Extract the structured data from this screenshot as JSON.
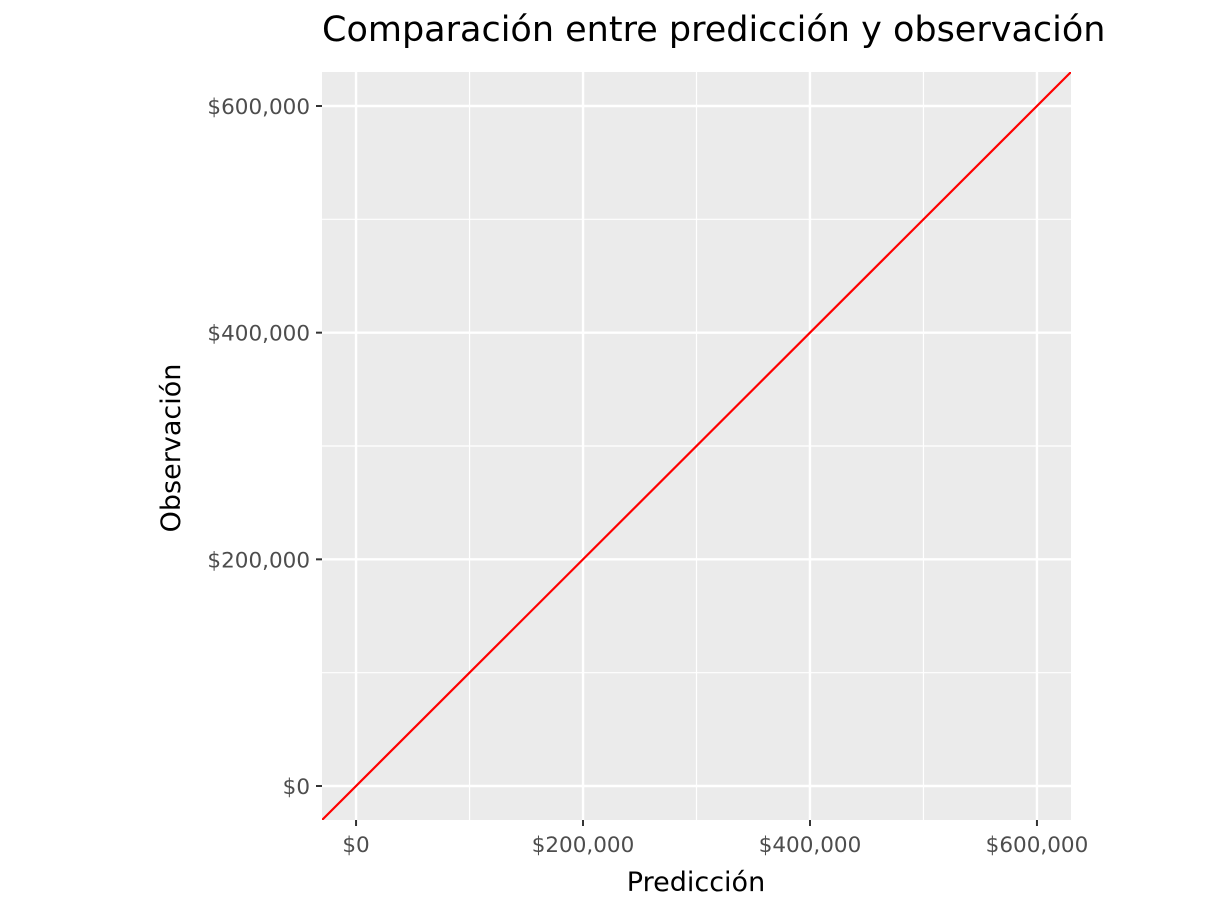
{
  "chart_data": {
    "type": "line",
    "title": "Comparación entre predicción y observación",
    "xlabel": "Predicción",
    "ylabel": "Observación",
    "xlim": [
      -30000,
      630000
    ],
    "ylim": [
      -30000,
      630000
    ],
    "x_ticks": [
      {
        "value": 0,
        "label": "$0"
      },
      {
        "value": 200000,
        "label": "$200,000"
      },
      {
        "value": 400000,
        "label": "$400,000"
      },
      {
        "value": 600000,
        "label": "$600,000"
      }
    ],
    "y_ticks": [
      {
        "value": 0,
        "label": "$0"
      },
      {
        "value": 200000,
        "label": "$200,000"
      },
      {
        "value": 400000,
        "label": "$400,000"
      },
      {
        "value": 600000,
        "label": "$600,000"
      }
    ],
    "minor_grid": [
      100000,
      300000,
      500000
    ],
    "grid": true,
    "legend": "none",
    "series": [
      {
        "color": "#ff0000",
        "x": [
          -30000,
          630000
        ],
        "y": [
          -30000,
          630000
        ]
      }
    ],
    "colors": {
      "panel": "#ebebeb",
      "grid": "#ffffff",
      "line": "#ff0000",
      "tick": "#333333"
    }
  }
}
